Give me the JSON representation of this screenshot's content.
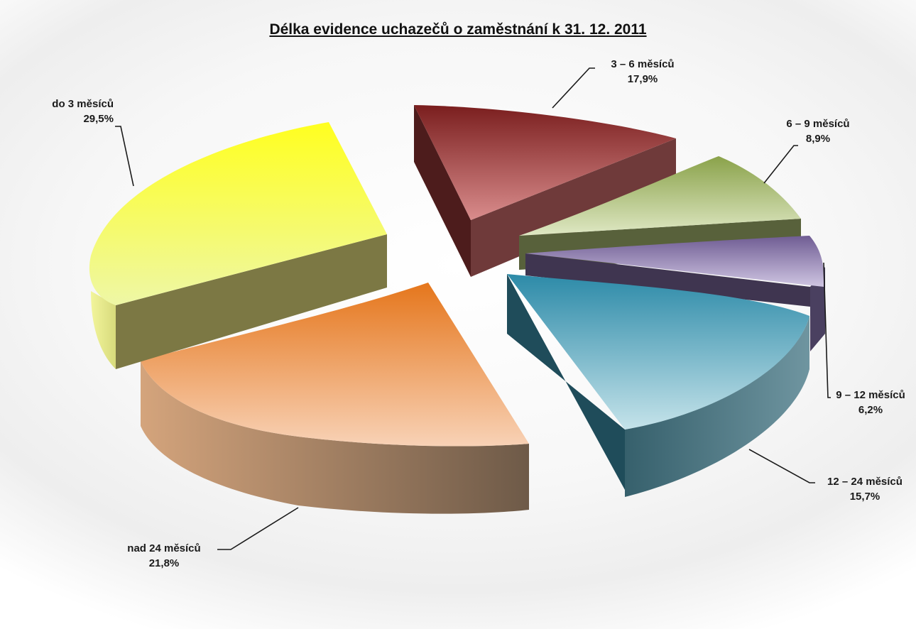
{
  "chart_data": {
    "type": "pie",
    "title": "Délka evidence uchazečů o zaměstnání k 31. 12. 2011",
    "slices": [
      {
        "label": "3 – 6 měsíců",
        "value": 17.9,
        "display": "17,9%",
        "color": "#a43b3b"
      },
      {
        "label": "6 – 9 měsíců",
        "value": 8.9,
        "display": "8,9%",
        "color": "#a9bf6c"
      },
      {
        "label": "9 – 12 měsíců",
        "value": 6.2,
        "display": "6,2%",
        "color": "#8e7bb3"
      },
      {
        "label": "12 – 24 měsíců",
        "value": 15.7,
        "display": "15,7%",
        "color": "#4fa3bd"
      },
      {
        "label": "nad 24 měsíců",
        "value": 21.8,
        "display": "21,8%",
        "color": "#f09a55"
      },
      {
        "label": "do 3 měsíců",
        "value": 29.5,
        "display": "29,5%",
        "color": "#f7f75a"
      }
    ]
  }
}
